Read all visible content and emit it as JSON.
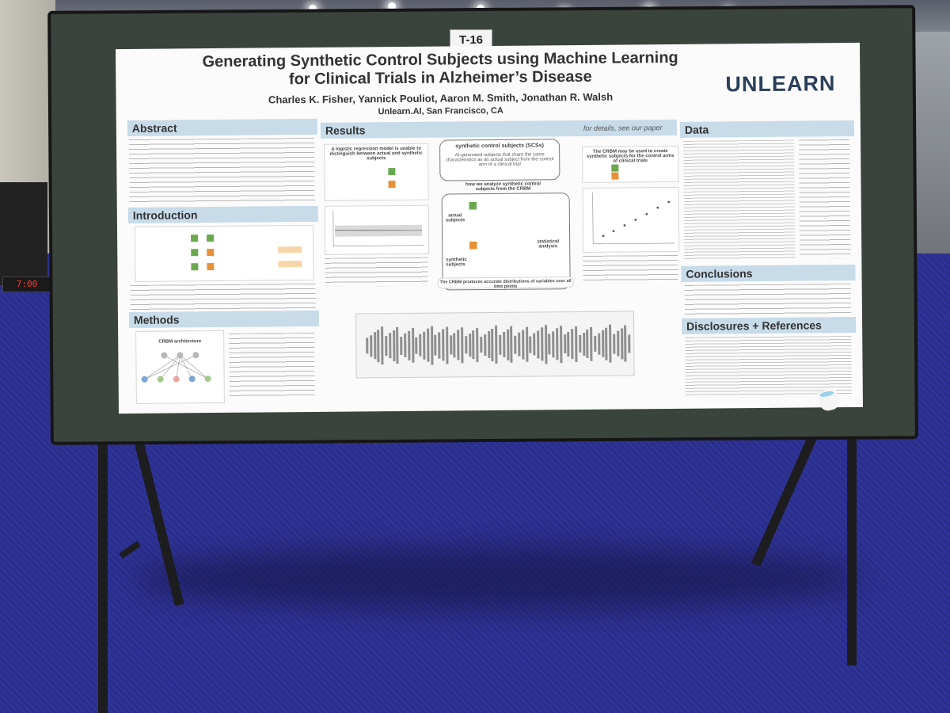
{
  "booth_sign": "7:00",
  "board_tag": "T-16",
  "poster": {
    "title_line1": "Generating Synthetic Control Subjects using Machine Learning",
    "title_line2": "for Clinical Trials in Alzheimer’s Disease",
    "authors": "Charles K. Fisher, Yannick Pouliot, Aaron M. Smith, Jonathan R. Walsh",
    "affiliation": "Unlearn.AI, San Francisco, CA",
    "logo": "UNLEARN",
    "sections": {
      "abstract": "Abstract",
      "introduction": "Introduction",
      "methods": "Methods",
      "results": "Results",
      "data": "Data",
      "conclusions": "Conclusions",
      "disclosures": "Disclosures + References"
    },
    "results_note": "for details, see our paper",
    "scscs_title": "synthetic control subjects (SCSs)",
    "scs_subtitle": "AI-generated subjects that share the same characteristics as an actual subject from the control arm of a clinical trial",
    "how_analyze": "how we analyze synthetic control subjects from the CRBM",
    "actual_subjects": "actual subjects",
    "synthetic_subjects": "synthetic subjects",
    "statistical_analysis": "statistical analysis",
    "crbm_distributions": "The CRBM produces accurate distributions of variables over all time points",
    "logreg_box": "A logistic regression model is unable to distinguish between actual and synthetic subjects",
    "crbm_box": "The CRBM may be used to create synthetic subjects for the control arms of clinical trials",
    "crbm_architecture": "CRBM architecture"
  },
  "colors": {
    "section_header": "#c7dbe9",
    "logo": "#2b3f5a",
    "face_green": "#6aa84f",
    "face_orange": "#e69138",
    "board": "#3b443c",
    "carpet": "#2b2e86"
  }
}
